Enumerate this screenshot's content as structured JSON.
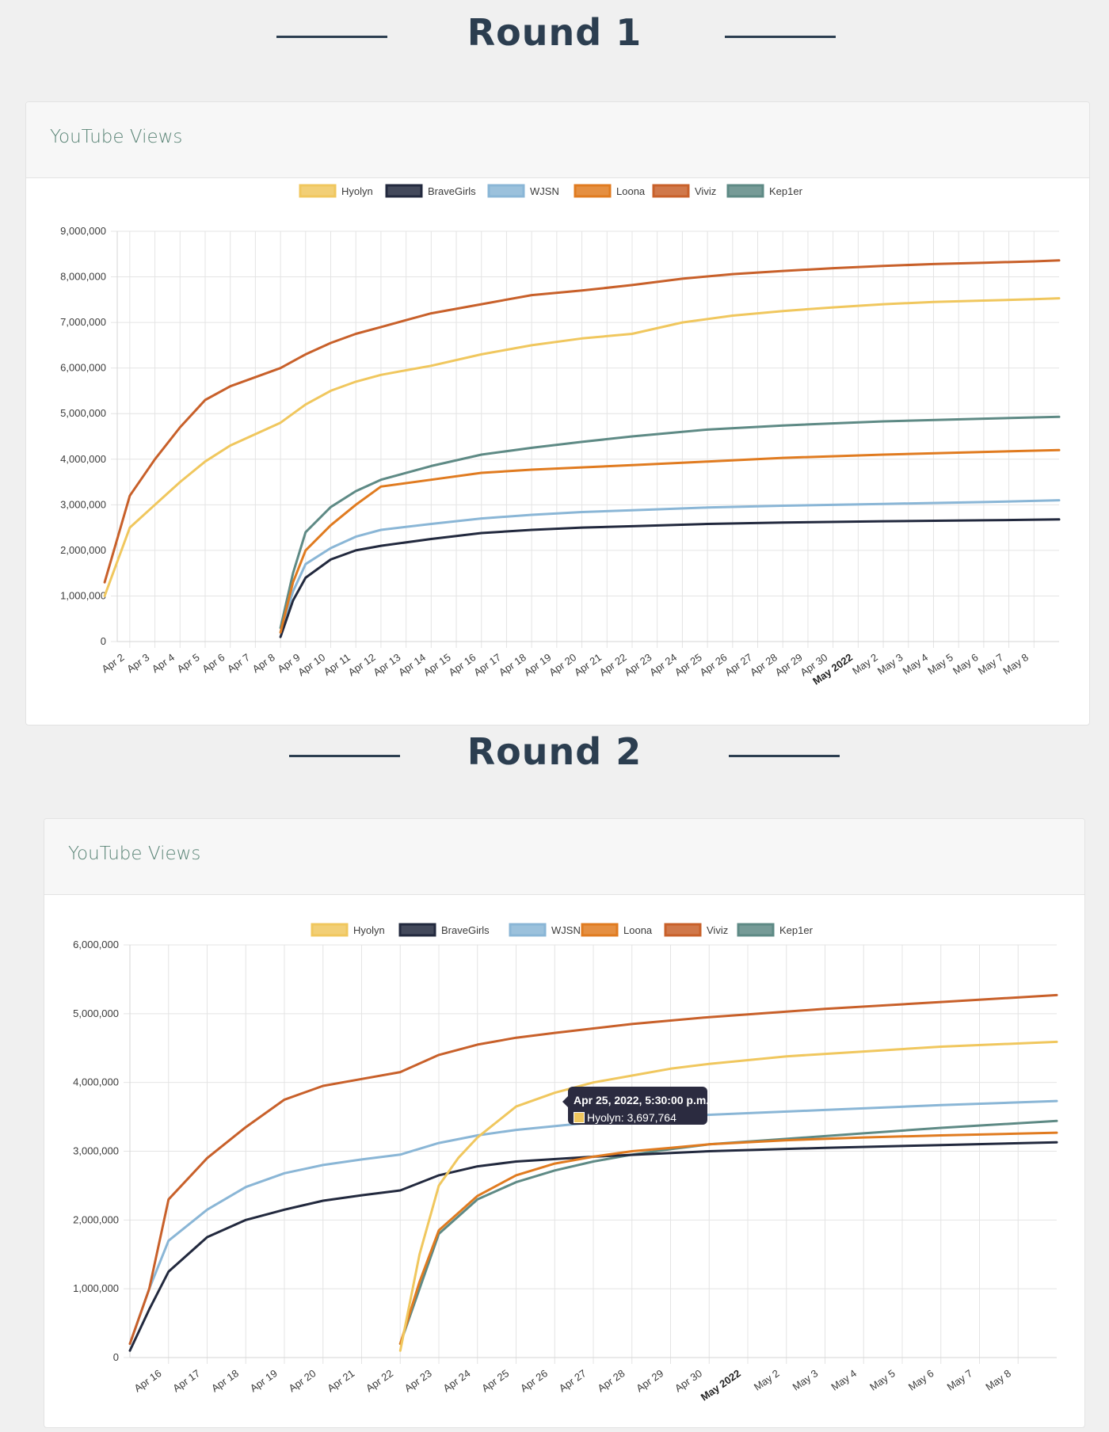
{
  "rounds": [
    {
      "title": "Round 1",
      "card_title": "YouTube Views"
    },
    {
      "title": "Round 2",
      "card_title": "YouTube Views"
    }
  ],
  "colors": {
    "Hyolyn": "#f0c75e",
    "BraveGirls": "#22293e",
    "WJSN": "#8ab6d6",
    "Loona": "#e07b20",
    "Viviz": "#c8602a",
    "Kep1er": "#5e8a85"
  },
  "tooltip": {
    "title": "Apr 25, 2022, 5:30:00 p.m.",
    "series": "Hyolyn",
    "value_text": "Hyolyn: 3,697,764",
    "x_day": 24.72,
    "value": 3697764
  },
  "chart_data": [
    {
      "type": "line",
      "title": "YouTube Views",
      "legend_position": "top",
      "grid": true,
      "x_unit": "day",
      "x_range": [
        "Apr 1, 2022 12:00",
        "May 9, 2022"
      ],
      "x_ticks": [
        "Apr 2",
        "Apr 3",
        "Apr 4",
        "Apr 5",
        "Apr 6",
        "Apr 7",
        "Apr 8",
        "Apr 9",
        "Apr 10",
        "Apr 11",
        "Apr 12",
        "Apr 13",
        "Apr 14",
        "Apr 15",
        "Apr 16",
        "Apr 17",
        "Apr 18",
        "Apr 19",
        "Apr 20",
        "Apr 21",
        "Apr 22",
        "Apr 23",
        "Apr 24",
        "Apr 25",
        "Apr 26",
        "Apr 27",
        "Apr 28",
        "Apr 29",
        "Apr 30",
        "May 2022",
        "May 2",
        "May 3",
        "May 4",
        "May 5",
        "May 6",
        "May 7",
        "May 8"
      ],
      "x_ticks_bold": [
        "May 2022"
      ],
      "ylim": [
        0,
        9000000
      ],
      "y_ticks": [
        "0",
        "1,000,000",
        "2,000,000",
        "3,000,000",
        "4,000,000",
        "5,000,000",
        "6,000,000",
        "7,000,000",
        "8,000,000",
        "9,000,000"
      ],
      "series": [
        {
          "name": "Hyolyn",
          "x": [
            "Apr 1",
            "Apr 2",
            "Apr 3",
            "Apr 4",
            "Apr 5",
            "Apr 6",
            "Apr 7",
            "Apr 8",
            "Apr 9",
            "Apr 10",
            "Apr 11",
            "Apr 12",
            "Apr 13",
            "Apr 14",
            "Apr 16",
            "Apr 18",
            "Apr 20",
            "Apr 22",
            "Apr 24",
            "Apr 26",
            "Apr 28",
            "Apr 30",
            "May 2",
            "May 4",
            "May 6",
            "May 8",
            "May 9"
          ],
          "values": [
            1000000,
            2500000,
            3000000,
            3500000,
            3950000,
            4300000,
            4550000,
            4800000,
            5200000,
            5500000,
            5700000,
            5850000,
            5950000,
            6050000,
            6300000,
            6500000,
            6650000,
            6750000,
            7000000,
            7150000,
            7250000,
            7330000,
            7400000,
            7450000,
            7480000,
            7510000,
            7530000
          ]
        },
        {
          "name": "BraveGirls",
          "x": [
            "Apr 8",
            "Apr 8 12:00",
            "Apr 9",
            "Apr 10",
            "Apr 11",
            "Apr 12",
            "Apr 14",
            "Apr 16",
            "Apr 18",
            "Apr 20",
            "Apr 22",
            "Apr 25",
            "Apr 28",
            "May 2",
            "May 6",
            "May 9"
          ],
          "values": [
            100000,
            900000,
            1400000,
            1800000,
            2000000,
            2100000,
            2250000,
            2380000,
            2450000,
            2500000,
            2530000,
            2580000,
            2610000,
            2640000,
            2660000,
            2680000
          ]
        },
        {
          "name": "WJSN",
          "x": [
            "Apr 8",
            "Apr 8 12:00",
            "Apr 9",
            "Apr 10",
            "Apr 11",
            "Apr 12",
            "Apr 14",
            "Apr 16",
            "Apr 18",
            "Apr 20",
            "Apr 22",
            "Apr 25",
            "Apr 28",
            "May 2",
            "May 6",
            "May 9"
          ],
          "values": [
            200000,
            1100000,
            1700000,
            2050000,
            2300000,
            2450000,
            2580000,
            2700000,
            2780000,
            2840000,
            2880000,
            2940000,
            2980000,
            3020000,
            3060000,
            3100000
          ]
        },
        {
          "name": "Loona",
          "x": [
            "Apr 8",
            "Apr 8 12:00",
            "Apr 9",
            "Apr 10",
            "Apr 11",
            "Apr 12",
            "Apr 14",
            "Apr 16",
            "Apr 18",
            "Apr 20",
            "Apr 22",
            "Apr 25",
            "Apr 28",
            "May 2",
            "May 6",
            "May 9"
          ],
          "values": [
            200000,
            1300000,
            2000000,
            2550000,
            3000000,
            3400000,
            3550000,
            3700000,
            3770000,
            3820000,
            3870000,
            3950000,
            4030000,
            4100000,
            4160000,
            4200000
          ]
        },
        {
          "name": "Viviz",
          "x": [
            "Apr 1",
            "Apr 2",
            "Apr 3",
            "Apr 4",
            "Apr 5",
            "Apr 6",
            "Apr 7",
            "Apr 8",
            "Apr 9",
            "Apr 10",
            "Apr 11",
            "Apr 12",
            "Apr 13",
            "Apr 14",
            "Apr 16",
            "Apr 18",
            "Apr 20",
            "Apr 22",
            "Apr 24",
            "Apr 26",
            "Apr 28",
            "Apr 30",
            "May 2",
            "May 4",
            "May 6",
            "May 8",
            "May 9"
          ],
          "values": [
            1300000,
            3200000,
            4000000,
            4700000,
            5300000,
            5600000,
            5800000,
            6000000,
            6300000,
            6550000,
            6750000,
            6900000,
            7050000,
            7200000,
            7400000,
            7600000,
            7700000,
            7820000,
            7960000,
            8060000,
            8130000,
            8190000,
            8240000,
            8280000,
            8310000,
            8340000,
            8360000
          ]
        },
        {
          "name": "Kep1er",
          "x": [
            "Apr 8",
            "Apr 8 12:00",
            "Apr 9",
            "Apr 10",
            "Apr 11",
            "Apr 12",
            "Apr 14",
            "Apr 16",
            "Apr 18",
            "Apr 20",
            "Apr 22",
            "Apr 25",
            "Apr 28",
            "May 2",
            "May 6",
            "May 9"
          ],
          "values": [
            300000,
            1500000,
            2400000,
            2950000,
            3300000,
            3550000,
            3850000,
            4100000,
            4250000,
            4380000,
            4500000,
            4650000,
            4740000,
            4830000,
            4890000,
            4930000
          ]
        }
      ]
    },
    {
      "type": "line",
      "title": "YouTube Views",
      "legend_position": "top",
      "grid": true,
      "x_unit": "day",
      "x_range": [
        "Apr 15",
        "May 9"
      ],
      "x_ticks": [
        "Apr 16",
        "Apr 17",
        "Apr 18",
        "Apr 19",
        "Apr 20",
        "Apr 21",
        "Apr 22",
        "Apr 23",
        "Apr 24",
        "Apr 25",
        "Apr 26",
        "Apr 27",
        "Apr 28",
        "Apr 29",
        "Apr 30",
        "May 2022",
        "May 2",
        "May 3",
        "May 4",
        "May 5",
        "May 6",
        "May 7",
        "May 8"
      ],
      "x_ticks_bold": [
        "May 2022"
      ],
      "ylim": [
        0,
        6000000
      ],
      "y_ticks": [
        "0",
        "1,000,000",
        "2,000,000",
        "3,000,000",
        "4,000,000",
        "5,000,000",
        "6,000,000"
      ],
      "series": [
        {
          "name": "Hyolyn",
          "x": [
            "Apr 22",
            "Apr 22 12:00",
            "Apr 23",
            "Apr 23 12:00",
            "Apr 24",
            "Apr 25",
            "Apr 26",
            "Apr 27",
            "Apr 28",
            "Apr 29",
            "Apr 30",
            "May 2",
            "May 4",
            "May 6",
            "May 9"
          ],
          "values": [
            100000,
            1500000,
            2500000,
            2900000,
            3200000,
            3650000,
            3850000,
            4000000,
            4100000,
            4200000,
            4270000,
            4380000,
            4450000,
            4520000,
            4590000
          ]
        },
        {
          "name": "BraveGirls",
          "x": [
            "Apr 15",
            "Apr 15 12:00",
            "Apr 16",
            "Apr 17",
            "Apr 18",
            "Apr 19",
            "Apr 20",
            "Apr 21",
            "Apr 22",
            "Apr 23",
            "Apr 24",
            "Apr 25",
            "Apr 27",
            "Apr 30",
            "May 3",
            "May 6",
            "May 9"
          ],
          "values": [
            100000,
            700000,
            1250000,
            1750000,
            2000000,
            2150000,
            2280000,
            2360000,
            2430000,
            2650000,
            2780000,
            2850000,
            2920000,
            3000000,
            3050000,
            3090000,
            3130000
          ]
        },
        {
          "name": "WJSN",
          "x": [
            "Apr 15",
            "Apr 15 12:00",
            "Apr 16",
            "Apr 17",
            "Apr 18",
            "Apr 19",
            "Apr 20",
            "Apr 21",
            "Apr 22",
            "Apr 23",
            "Apr 24",
            "Apr 25",
            "Apr 27",
            "Apr 30",
            "May 3",
            "May 6",
            "May 9"
          ],
          "values": [
            200000,
            1000000,
            1700000,
            2150000,
            2480000,
            2680000,
            2800000,
            2880000,
            2950000,
            3120000,
            3230000,
            3310000,
            3420000,
            3530000,
            3600000,
            3670000,
            3730000
          ]
        },
        {
          "name": "Loona",
          "x": [
            "Apr 22",
            "Apr 22 12:00",
            "Apr 23",
            "Apr 24",
            "Apr 25",
            "Apr 26",
            "Apr 27",
            "Apr 28",
            "Apr 29",
            "Apr 30",
            "May 2",
            "May 4",
            "May 6",
            "May 9"
          ],
          "values": [
            200000,
            1100000,
            1850000,
            2350000,
            2650000,
            2820000,
            2920000,
            3000000,
            3050000,
            3100000,
            3160000,
            3200000,
            3230000,
            3270000
          ]
        },
        {
          "name": "Viviz",
          "x": [
            "Apr 15",
            "Apr 15 12:00",
            "Apr 16",
            "Apr 17",
            "Apr 18",
            "Apr 19",
            "Apr 20",
            "Apr 21",
            "Apr 22",
            "Apr 23",
            "Apr 24",
            "Apr 25",
            "Apr 26",
            "Apr 28",
            "Apr 30",
            "May 3",
            "May 6",
            "May 9"
          ],
          "values": [
            200000,
            1000000,
            2300000,
            2900000,
            3350000,
            3750000,
            3950000,
            4050000,
            4150000,
            4400000,
            4550000,
            4650000,
            4720000,
            4850000,
            4950000,
            5070000,
            5170000,
            5270000
          ]
        },
        {
          "name": "Kep1er",
          "x": [
            "Apr 22",
            "Apr 22 12:00",
            "Apr 23",
            "Apr 24",
            "Apr 25",
            "Apr 26",
            "Apr 27",
            "Apr 28",
            "Apr 29",
            "Apr 30",
            "May 2",
            "May 4",
            "May 6",
            "May 9"
          ],
          "values": [
            200000,
            1000000,
            1800000,
            2300000,
            2550000,
            2720000,
            2850000,
            2950000,
            3030000,
            3100000,
            3180000,
            3260000,
            3340000,
            3440000
          ]
        }
      ]
    }
  ]
}
